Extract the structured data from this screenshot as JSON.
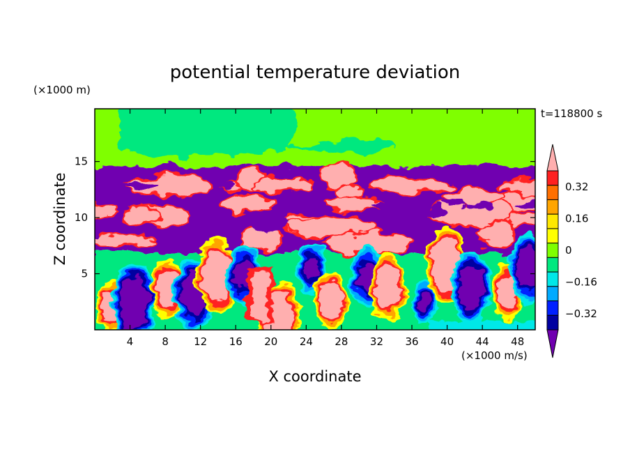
{
  "chart_data": {
    "type": "heatmap",
    "title": "potential temperature deviation",
    "xlabel": "X coordinate",
    "ylabel": "Z coordinate",
    "x_unit": "(×1000 m/s)",
    "y_unit": "(×1000 m)",
    "time_label": "t=118800 s",
    "xlim": [
      0,
      50
    ],
    "ylim": [
      0,
      19.7
    ],
    "x_ticks": [
      4,
      8,
      12,
      16,
      20,
      24,
      28,
      32,
      36,
      40,
      44,
      48
    ],
    "y_ticks": [
      5,
      10,
      15
    ],
    "colorbar": {
      "levels": [
        -0.4,
        -0.32,
        -0.24,
        -0.16,
        -0.08,
        0,
        0.08,
        0.16,
        0.24,
        0.32,
        0.4
      ],
      "tick_labels": [
        "0.32",
        "0.16",
        "0",
        "−0.16",
        "−0.32"
      ],
      "tick_values": [
        0.32,
        0.16,
        0,
        -0.16,
        -0.32
      ],
      "colors": [
        "#ffafaf",
        "#ff2020",
        "#ff6f00",
        "#ffa500",
        "#ffe800",
        "#ffff00",
        "#7fff00",
        "#00e87f",
        "#00e8e8",
        "#00aaff",
        "#0020ff",
        "#0000a0",
        "#7000b0"
      ],
      "extend": "both"
    },
    "field_summary": {
      "z_above_14_5": "green band near 0 (slightly negative green-cyan in large patches)",
      "z_7_to_14_5": "interleaved pink (>0.4) and purple (<-0.4) layers",
      "z_0_to_7": "turbulent eddies spanning -0.32 to 0.4"
    }
  }
}
